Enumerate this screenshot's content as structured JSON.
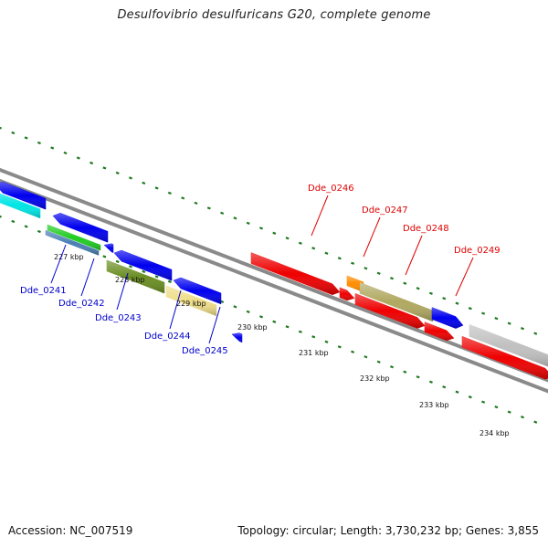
{
  "title": "Desulfovibrio desulfuricans G20, complete genome",
  "footer": {
    "accession": "Accession: NC_007519",
    "summary": "Topology: circular; Length: 3,730,232 bp; Genes: 3,855"
  },
  "colors": {
    "backbone": "#8a8a8a",
    "tick_dots": "#1f7a1f",
    "reverse_label": "#0000cc",
    "forward_label": "#e00000"
  },
  "ticks": [
    "227 kbp",
    "228 kbp",
    "229 kbp",
    "230 kbp",
    "231 kbp",
    "232 kbp",
    "233 kbp",
    "234 kbp"
  ],
  "labels": [
    {
      "text": "Dde_0241",
      "strand": "reverse"
    },
    {
      "text": "Dde_0242",
      "strand": "reverse"
    },
    {
      "text": "Dde_0243",
      "strand": "reverse"
    },
    {
      "text": "Dde_0244",
      "strand": "reverse"
    },
    {
      "text": "Dde_0245",
      "strand": "reverse"
    },
    {
      "text": "Dde_0246",
      "strand": "forward"
    },
    {
      "text": "Dde_0247",
      "strand": "forward"
    },
    {
      "text": "Dde_0248",
      "strand": "forward"
    },
    {
      "text": "Dde_0249",
      "strand": "forward"
    }
  ],
  "features": [
    {
      "color": "#0000ee",
      "strand": "reverse"
    },
    {
      "color": "#00e5e5",
      "strand": "reverse"
    },
    {
      "color": "#0000ee",
      "strand": "reverse"
    },
    {
      "color": "#22cc22",
      "strand": "reverse"
    },
    {
      "color": "#4a7fb5",
      "strand": "reverse"
    },
    {
      "color": "#0000ee",
      "strand": "reverse"
    },
    {
      "color": "#0000ee",
      "strand": "reverse"
    },
    {
      "color": "#6b8e23",
      "strand": "reverse"
    },
    {
      "color": "#0000ee",
      "strand": "reverse"
    },
    {
      "color": "#eedd88",
      "strand": "reverse"
    },
    {
      "color": "#0000ee",
      "strand": "reverse"
    },
    {
      "color": "#ee0000",
      "strand": "forward"
    },
    {
      "color": "#ee0000",
      "strand": "forward"
    },
    {
      "color": "#ff8c00",
      "strand": "forward"
    },
    {
      "color": "#b0a860",
      "strand": "forward"
    },
    {
      "color": "#ee0000",
      "strand": "forward"
    },
    {
      "color": "#0000ee",
      "strand": "forward"
    },
    {
      "color": "#ee0000",
      "strand": "forward"
    },
    {
      "color": "#c0c0c0",
      "strand": "forward"
    },
    {
      "color": "#ee0000",
      "strand": "forward"
    }
  ]
}
